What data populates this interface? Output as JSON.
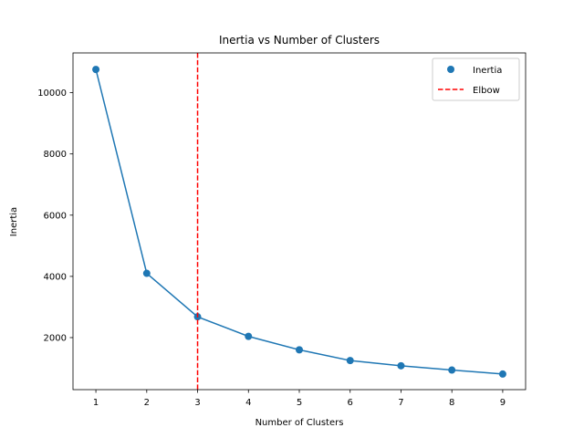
{
  "chart_data": {
    "type": "line",
    "title": "Inertia vs Number of Clusters",
    "xlabel": "Number of Clusters",
    "ylabel": "Inertia",
    "x": [
      1,
      2,
      3,
      4,
      5,
      6,
      7,
      8,
      9
    ],
    "xlim": [
      0.55,
      9.45
    ],
    "ylim": [
      300,
      11300
    ],
    "xticks": [
      1,
      2,
      3,
      4,
      5,
      6,
      7,
      8,
      9
    ],
    "yticks": [
      2000,
      4000,
      6000,
      8000,
      10000
    ],
    "grid": false,
    "legend_position": "top-right",
    "series": [
      {
        "name": "Inertia",
        "kind": "line+scatter",
        "color": "#1f77b4",
        "values": [
          10760,
          4100,
          2680,
          2040,
          1600,
          1250,
          1080,
          940,
          810
        ]
      }
    ],
    "annotations": [
      {
        "name": "Elbow",
        "kind": "vertical-line",
        "x": 3,
        "color": "#ff0000",
        "style": "dashed"
      }
    ]
  }
}
